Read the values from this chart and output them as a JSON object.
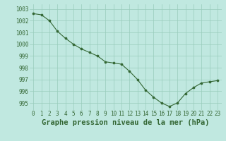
{
  "x": [
    0,
    1,
    2,
    3,
    4,
    5,
    6,
    7,
    8,
    9,
    10,
    11,
    12,
    13,
    14,
    15,
    16,
    17,
    18,
    19,
    20,
    21,
    22,
    23
  ],
  "y": [
    1002.6,
    1002.5,
    1002.0,
    1001.1,
    1000.5,
    1000.0,
    999.6,
    999.3,
    999.0,
    998.5,
    998.4,
    998.3,
    997.7,
    997.0,
    996.1,
    995.5,
    995.0,
    994.7,
    995.0,
    995.8,
    996.3,
    996.7,
    996.8,
    996.9
  ],
  "line_color": "#336633",
  "marker_color": "#336633",
  "bg_color": "#c0e8e0",
  "grid_color": "#99ccbb",
  "text_color": "#336633",
  "xlabel": "Graphe pression niveau de la mer (hPa)",
  "ylim_min": 994.4,
  "ylim_max": 1003.4,
  "yticks": [
    995,
    996,
    997,
    998,
    999,
    1000,
    1001,
    1002,
    1003
  ],
  "axis_fontsize": 5.5,
  "label_fontsize": 7.5
}
